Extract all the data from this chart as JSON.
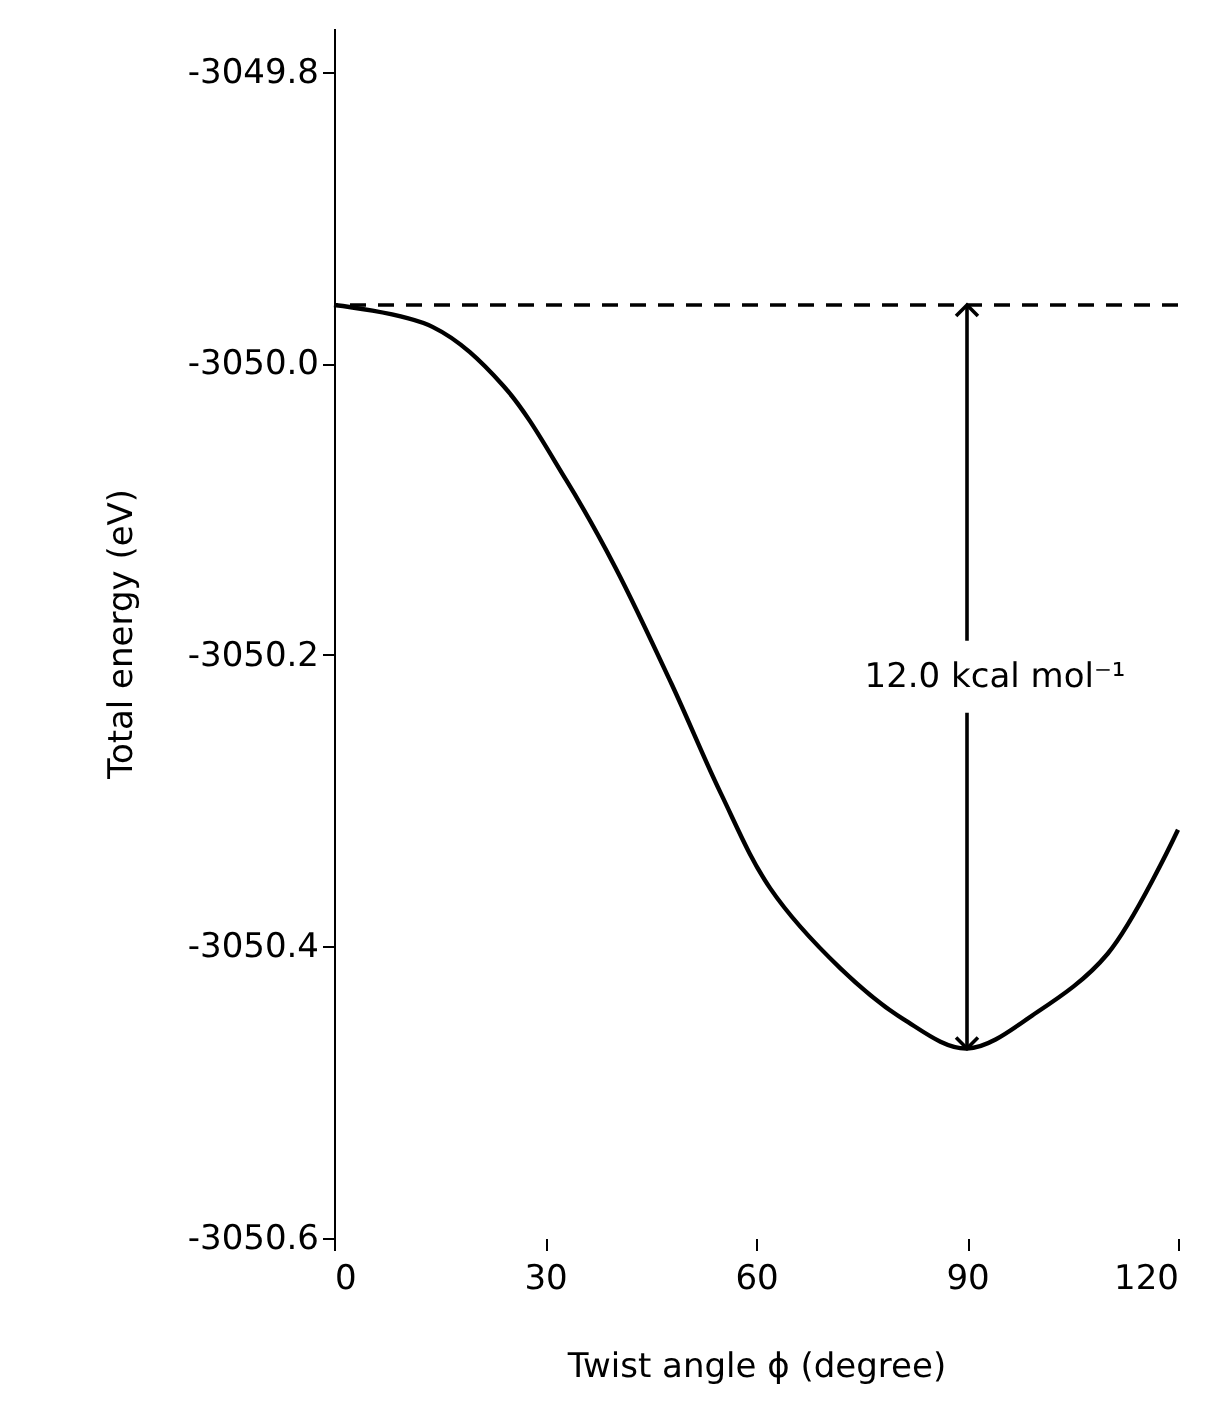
{
  "chart_data": {
    "type": "line",
    "xlabel": "Twist angle ϕ (degree)",
    "ylabel": "Total energy (eV)",
    "x": [
      0,
      14,
      24,
      33,
      40,
      48,
      55,
      62,
      72,
      81,
      90,
      100,
      110,
      120
    ],
    "series": [
      {
        "color": "#000000",
        "values": [
          -3049.96,
          -3049.975,
          -3050.015,
          -3050.08,
          -3050.14,
          -3050.22,
          -3050.295,
          -3050.36,
          -3050.415,
          -3050.45,
          -3050.47,
          -3050.445,
          -3050.405,
          -3050.32
        ]
      }
    ],
    "xlim": [
      0,
      120
    ],
    "xticks": [
      0,
      30,
      60,
      90,
      120
    ],
    "ylim": [
      -3050.6,
      -3049.77
    ],
    "yticks": [
      {
        "value": -3050.6,
        "label": "-3050.6"
      },
      {
        "value": -3050.4,
        "label": "-3050.4"
      },
      {
        "value": -3050.2,
        "label": "-3050.2"
      },
      {
        "value": -3050.0,
        "label": "-3050.0"
      },
      {
        "value": -3049.8,
        "label": "-3049.8"
      }
    ],
    "ref_lines": [
      {
        "axis": "y",
        "value": -3049.96,
        "line_style": "dashed"
      }
    ],
    "annotations": [
      {
        "text": "12.0 kcal mol⁻¹",
        "x": 90,
        "y": -3050.47
      }
    ],
    "grid": false,
    "marker": "none",
    "line_style": "solid"
  }
}
